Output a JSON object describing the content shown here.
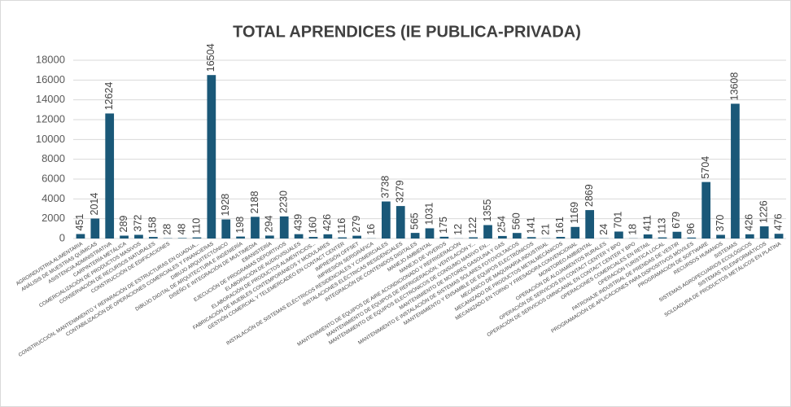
{
  "chart_data": {
    "type": "bar",
    "title": "TOTAL APRENDICES (IE PUBLICA-PRIVADA)",
    "categories": [
      "AGROINDUSTRIA ALIMENTARIA",
      "ANÁLISIS DE MUESTRAS QUÍMICAS",
      "ASISTENCIA ADMINISTRATIVA",
      "CARPINTERÍA METÁLICA",
      "COMERCIALIZACIÓN DE PRODUCTOS MASIVOS",
      "CONSERVACIÓN DE RECURSOS NATURALES",
      "CONSTRUCCIÓN DE EDIFICACIONES",
      null,
      "CONSTRUCCIÓN, MANTENIMIENTO Y REPARACIÓN DE ESTRUCTURAS EN GUADUA...",
      "CONTABILIZACIÓN DE OPERACIONES COMERCIALES Y FINANCIERAS",
      "DIBUJO ARQUITECTÓNICO",
      "DIBUJO DIGITAL DE ARQUITECTURA E INGENIERÍA",
      "DISEÑO E INTEGRACIÓN DE MULTIMEDIA",
      "EBANISTERÍA",
      "EJECUCIÓN DE PROGRAMAS DEPORTIVOS",
      "ELABORACIÓN DE AUDIOVISUALES",
      "ELABORACIÓN DE PRODUCTOS ALIMENTICIOS...",
      "FABRICACIÓN DE MUEBLES CONTEMPORÁNEOS Y MODULARES",
      "GESTIÓN COMERCIAL Y TELEMERCADEO EN CONTACT CENTER",
      "IMPRESIÓN OFFSET",
      "IMPRESIÓN SERIGRÁFICA",
      "INSTALACIÓN DE SISTEMAS ELÉCTRICOS RESIDENCIALES Y COMERCIALES",
      "INSTALACIONES ELÉCTRICAS RESIDENCIALES",
      "INTEGRACIÓN DE CONTENIDOS DIGITALES",
      "MANEJO AMBIENTAL",
      "MANEJO DE VIVEROS",
      "MANTENIMIENTO DE EQUIPOS DE AIRE ACONDICIONADO Y REFRIGERACIÓN",
      "MANTENIMIENTO DE EQUIPOS DE REFRIGERACIÓN, VENTILACIÓN Y...",
      "MANTENIMIENTO DE EQUIPOS ELECTRÓNICOS DE CONSUMO MASIVO EN...",
      "MANTENIMIENTO DE MOTORES GASOLINA Y GAS",
      "MANTENIMIENTO E INSTALACIÓN DE SISTEMAS SOLARES FOTOVOLTAICOS",
      "MANTENIMIENTO Y ENSAMBLE DE EQUIPOS ELECTRÓNICOS",
      "MECÁNICO DE MAQUINARIA INDUSTRIAL",
      "MECANIZADO DE PRODUCTOS METALMECÁNICOS",
      "MECANIZADO EN TORNO Y FRESADORA CONVENCIONAL",
      "MONITOREO AMBIENTAL",
      "OPERACIÓN DE ALOJAMIENTOS RURALES",
      "OPERACIÓN DE SERVICIOS EN CONTACT CENTER Y BPO",
      "OPERACIÓN DE SERVICIOS OMNICANAL EN CONTACT CENTER Y BPO",
      "OPERACIONES COMERCIALES EN RETAIL",
      "OPERACIÓN TURÍSTICA LOCAL",
      "PATRONAJE INDUSTRIAL DE PRENDAS DE VESTIR",
      "PROGRAMACIÓN DE APLICACIONES PARA DISPOSITIVOS MÓVILES",
      "PROGRAMACIÓN DE SOFTWARE",
      "RECURSOS HUMANOS",
      "SISTEMAS",
      "SISTEMAS AGROPECUARIOS ECOLÓGICOS",
      "SISTEMAS TELEINFORMÁTICOS",
      "SOLDADURA DE PRODUCTOS METÁLICOS EN PLATINA"
    ],
    "values": [
      451,
      2014,
      12624,
      289,
      372,
      158,
      28,
      48,
      110,
      16504,
      1928,
      198,
      2188,
      294,
      2230,
      439,
      160,
      426,
      116,
      279,
      16,
      3738,
      3279,
      565,
      1031,
      175,
      12,
      122,
      1355,
      254,
      560,
      141,
      21,
      161,
      1169,
      2869,
      24,
      701,
      18,
      411,
      113,
      679,
      96,
      5704,
      370,
      13608,
      426,
      1226,
      476
    ],
    "color": "#1a5878",
    "ylim": [
      0,
      18000
    ],
    "yticks": [
      0,
      2000,
      4000,
      6000,
      8000,
      10000,
      12000,
      14000,
      16000,
      18000
    ],
    "grid": true
  }
}
